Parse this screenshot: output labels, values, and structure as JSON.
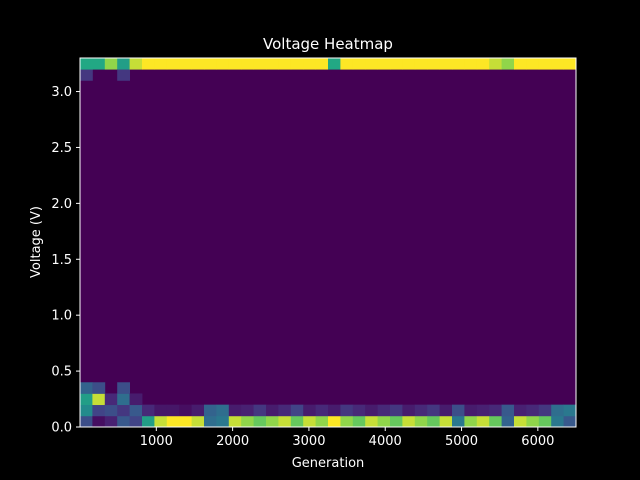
{
  "chart_data": {
    "type": "heatmap",
    "title": "Voltage Heatmap",
    "xlabel": "Generation",
    "ylabel": "Voltage (V)",
    "xlim": [
      0,
      6500
    ],
    "ylim": [
      0,
      3.3
    ],
    "xticks": [
      1000,
      2000,
      3000,
      4000,
      5000,
      6000
    ],
    "yticks": [
      0.0,
      0.5,
      1.0,
      1.5,
      2.0,
      2.5,
      3.0
    ],
    "colormap": "viridis",
    "background": "#000000",
    "x_bin_count": 40,
    "y_bin_count": 33,
    "grid": false,
    "cells": [
      [
        0,
        0,
        0.3
      ],
      [
        0,
        1,
        0.6
      ],
      [
        0,
        2,
        0.7
      ],
      [
        0,
        3,
        0.4
      ],
      [
        0,
        31,
        0.2
      ],
      [
        0,
        32,
        0.75
      ],
      [
        1,
        0,
        0.05
      ],
      [
        1,
        1,
        0.25
      ],
      [
        1,
        2,
        0.95
      ],
      [
        1,
        3,
        0.3
      ],
      [
        1,
        32,
        0.75
      ],
      [
        2,
        0,
        0.12
      ],
      [
        2,
        1,
        0.3
      ],
      [
        2,
        2,
        0.15
      ],
      [
        2,
        32,
        0.9
      ],
      [
        3,
        0,
        0.35
      ],
      [
        3,
        1,
        0.2
      ],
      [
        3,
        2,
        0.45
      ],
      [
        3,
        3,
        0.3
      ],
      [
        3,
        31,
        0.2
      ],
      [
        3,
        32,
        0.7
      ],
      [
        4,
        0,
        0.25
      ],
      [
        4,
        1,
        0.35
      ],
      [
        4,
        2,
        0.1
      ],
      [
        4,
        32,
        0.95
      ],
      [
        5,
        0,
        0.7
      ],
      [
        5,
        1,
        0.15
      ],
      [
        5,
        32,
        1.0
      ],
      [
        6,
        0,
        0.95
      ],
      [
        6,
        1,
        0.08
      ],
      [
        6,
        32,
        1.0
      ],
      [
        7,
        0,
        1.0
      ],
      [
        7,
        1,
        0.08
      ],
      [
        7,
        32,
        1.0
      ],
      [
        8,
        0,
        1.0
      ],
      [
        8,
        1,
        0.05
      ],
      [
        8,
        32,
        1.0
      ],
      [
        9,
        0,
        0.95
      ],
      [
        9,
        1,
        0.1
      ],
      [
        9,
        32,
        1.0
      ],
      [
        10,
        0,
        0.45
      ],
      [
        10,
        1,
        0.4
      ],
      [
        10,
        32,
        1.0
      ],
      [
        11,
        0,
        0.5
      ],
      [
        11,
        1,
        0.45
      ],
      [
        11,
        32,
        1.0
      ],
      [
        12,
        0,
        0.95
      ],
      [
        12,
        1,
        0.1
      ],
      [
        12,
        32,
        1.0
      ],
      [
        13,
        0,
        0.9
      ],
      [
        13,
        1,
        0.12
      ],
      [
        13,
        32,
        1.0
      ],
      [
        14,
        0,
        0.85
      ],
      [
        14,
        1,
        0.2
      ],
      [
        14,
        32,
        1.0
      ],
      [
        15,
        0,
        0.9
      ],
      [
        15,
        1,
        0.1
      ],
      [
        15,
        32,
        1.0
      ],
      [
        16,
        0,
        0.95
      ],
      [
        16,
        1,
        0.15
      ],
      [
        16,
        32,
        1.0
      ],
      [
        17,
        0,
        0.85
      ],
      [
        17,
        1,
        0.25
      ],
      [
        17,
        32,
        1.0
      ],
      [
        18,
        0,
        0.95
      ],
      [
        18,
        1,
        0.1
      ],
      [
        18,
        32,
        1.0
      ],
      [
        19,
        0,
        0.9
      ],
      [
        19,
        1,
        0.15
      ],
      [
        19,
        32,
        1.0
      ],
      [
        20,
        0,
        1.0
      ],
      [
        20,
        1,
        0.1
      ],
      [
        20,
        32,
        0.75
      ],
      [
        21,
        0,
        0.9
      ],
      [
        21,
        1,
        0.2
      ],
      [
        21,
        32,
        1.0
      ],
      [
        22,
        0,
        0.85
      ],
      [
        22,
        1,
        0.15
      ],
      [
        22,
        32,
        1.0
      ],
      [
        23,
        0,
        0.95
      ],
      [
        23,
        1,
        0.1
      ],
      [
        23,
        32,
        1.0
      ],
      [
        24,
        0,
        0.9
      ],
      [
        24,
        1,
        0.15
      ],
      [
        24,
        32,
        1.0
      ],
      [
        25,
        0,
        0.85
      ],
      [
        25,
        1,
        0.2
      ],
      [
        25,
        32,
        1.0
      ],
      [
        26,
        0,
        0.95
      ],
      [
        26,
        1,
        0.1
      ],
      [
        26,
        32,
        1.0
      ],
      [
        27,
        0,
        0.9
      ],
      [
        27,
        1,
        0.15
      ],
      [
        27,
        32,
        1.0
      ],
      [
        28,
        0,
        0.85
      ],
      [
        28,
        1,
        0.2
      ],
      [
        28,
        32,
        1.0
      ],
      [
        29,
        0,
        0.95
      ],
      [
        29,
        1,
        0.1
      ],
      [
        29,
        32,
        1.0
      ],
      [
        30,
        0,
        0.5
      ],
      [
        30,
        1,
        0.3
      ],
      [
        30,
        32,
        1.0
      ],
      [
        31,
        0,
        0.9
      ],
      [
        31,
        1,
        0.1
      ],
      [
        31,
        32,
        1.0
      ],
      [
        32,
        0,
        0.95
      ],
      [
        32,
        1,
        0.12
      ],
      [
        32,
        32,
        1.0
      ],
      [
        33,
        0,
        0.85
      ],
      [
        33,
        1,
        0.15
      ],
      [
        33,
        32,
        0.95
      ],
      [
        34,
        0,
        0.4
      ],
      [
        34,
        1,
        0.35
      ],
      [
        34,
        32,
        0.9
      ],
      [
        35,
        0,
        0.95
      ],
      [
        35,
        1,
        0.12
      ],
      [
        35,
        32,
        1.0
      ],
      [
        36,
        0,
        0.9
      ],
      [
        36,
        1,
        0.15
      ],
      [
        36,
        32,
        1.0
      ],
      [
        37,
        0,
        0.85
      ],
      [
        37,
        1,
        0.2
      ],
      [
        37,
        32,
        1.0
      ],
      [
        38,
        0,
        0.5
      ],
      [
        38,
        1,
        0.45
      ],
      [
        38,
        32,
        1.0
      ],
      [
        39,
        0,
        0.35
      ],
      [
        39,
        1,
        0.5
      ],
      [
        39,
        32,
        1.0
      ]
    ]
  }
}
